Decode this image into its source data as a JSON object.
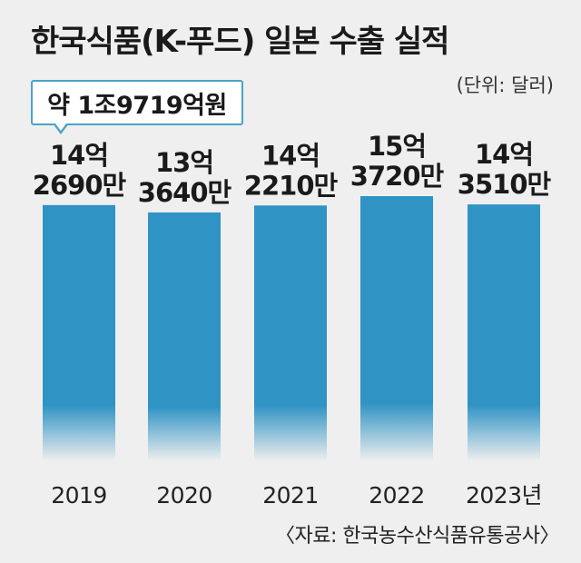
{
  "title": "한국식품(K-푸드) 일본 수출 실적",
  "unit": "(단위: 달러)",
  "callout": "약 1조9719억원",
  "source": "〈자료: 한국농수산식품유통공사〉",
  "colors": {
    "bar": "#2f93c4",
    "background": "#efefef"
  },
  "chart_data": {
    "type": "bar",
    "title": "한국식품(K-푸드) 일본 수출 실적",
    "ylabel": "(단위: 달러)",
    "categories": [
      "2019",
      "2020",
      "2021",
      "2022",
      "2023년"
    ],
    "values": [
      1426900000,
      1336400000,
      1422100000,
      1537200000,
      1435100000
    ],
    "labels": [
      [
        "14억",
        "2690만"
      ],
      [
        "13억",
        "3640만"
      ],
      [
        "14억",
        "2210만"
      ],
      [
        "15억",
        "3720만"
      ],
      [
        "14억",
        "3510만"
      ]
    ],
    "ylim": [
      0,
      1537200000
    ],
    "grid": false
  }
}
